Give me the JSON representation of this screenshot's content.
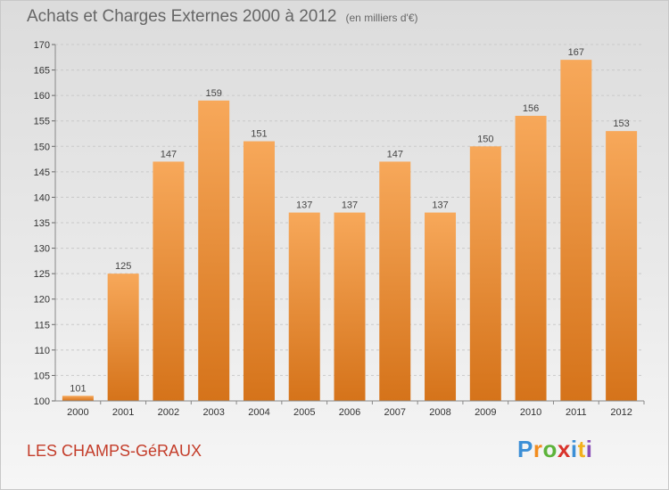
{
  "header": {
    "title": "Achats et Charges Externes 2000 à 2012",
    "subtitle": "(en milliers d'€)"
  },
  "footer": {
    "place": "LES CHAMPS-GéRAUX",
    "logo_letters": [
      "P",
      "r",
      "o",
      "x",
      "i",
      "t",
      "i"
    ]
  },
  "colors": {
    "bar_top": "#f7a85a",
    "bar_bottom": "#d5731a",
    "grid": "#c9c9c9",
    "title": "#666666",
    "place": "#c43d2a"
  },
  "chart_data": {
    "type": "bar",
    "categories": [
      "2000",
      "2001",
      "2002",
      "2003",
      "2004",
      "2005",
      "2006",
      "2007",
      "2008",
      "2009",
      "2010",
      "2011",
      "2012"
    ],
    "values": [
      101,
      125,
      147,
      159,
      151,
      137,
      137,
      147,
      137,
      150,
      156,
      167,
      153
    ],
    "ylim": [
      100,
      170
    ],
    "yticks": [
      100,
      105,
      110,
      115,
      120,
      125,
      130,
      135,
      140,
      145,
      150,
      155,
      160,
      165,
      170
    ],
    "grid": true
  }
}
